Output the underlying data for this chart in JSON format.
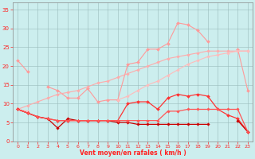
{
  "x": [
    0,
    1,
    2,
    3,
    4,
    5,
    6,
    7,
    8,
    9,
    10,
    11,
    12,
    13,
    14,
    15,
    16,
    17,
    18,
    19,
    20,
    21,
    22,
    23
  ],
  "series": [
    {
      "name": "max_gust_light",
      "color": "#ff9999",
      "linewidth": 0.8,
      "marker": "D",
      "markersize": 2.0,
      "values": [
        21.5,
        18.5,
        null,
        14.5,
        13.5,
        11.5,
        11.5,
        14.0,
        10.5,
        11.0,
        11.0,
        20.5,
        21.0,
        24.5,
        24.5,
        26.0,
        31.5,
        31.0,
        29.5,
        26.5,
        null,
        null,
        24.5,
        13.5
      ]
    },
    {
      "name": "mean_upper_light",
      "color": "#ffaaaa",
      "linewidth": 0.8,
      "marker": "D",
      "markersize": 1.8,
      "values": [
        8.5,
        9.5,
        10.5,
        11.5,
        12.5,
        13.0,
        13.5,
        14.5,
        15.5,
        16.0,
        17.0,
        18.0,
        19.0,
        20.0,
        21.0,
        22.0,
        22.5,
        23.0,
        23.5,
        24.0,
        24.0,
        24.0,
        24.0,
        24.0
      ]
    },
    {
      "name": "mean_mid_light",
      "color": "#ffbbbb",
      "linewidth": 0.8,
      "marker": "D",
      "markersize": 1.8,
      "values": [
        8.5,
        8.0,
        null,
        null,
        null,
        null,
        null,
        null,
        null,
        null,
        11.0,
        12.0,
        13.5,
        15.0,
        16.0,
        17.5,
        19.0,
        20.5,
        21.5,
        22.5,
        23.0,
        23.5,
        24.0,
        24.0
      ]
    },
    {
      "name": "series_dark1",
      "color": "#ff3333",
      "linewidth": 0.9,
      "marker": "D",
      "markersize": 2.0,
      "values": [
        8.5,
        7.5,
        6.5,
        6.0,
        5.5,
        5.5,
        5.5,
        5.5,
        5.5,
        5.5,
        5.5,
        10.0,
        10.5,
        10.5,
        8.5,
        11.5,
        12.5,
        12.0,
        12.5,
        12.0,
        8.5,
        7.0,
        6.0,
        2.5
      ]
    },
    {
      "name": "series_dark2",
      "color": "#cc0000",
      "linewidth": 0.9,
      "marker": "D",
      "markersize": 1.8,
      "values": [
        8.5,
        7.5,
        6.5,
        6.0,
        3.5,
        6.0,
        5.5,
        5.5,
        5.5,
        5.5,
        5.0,
        5.0,
        4.5,
        4.5,
        4.5,
        4.5,
        4.5,
        4.5,
        4.5,
        4.5,
        null,
        null,
        5.5,
        2.5
      ]
    },
    {
      "name": "series_dark3",
      "color": "#ff5555",
      "linewidth": 0.9,
      "marker": "D",
      "markersize": 1.8,
      "values": [
        8.5,
        7.5,
        6.5,
        6.0,
        5.5,
        5.5,
        5.5,
        5.5,
        5.5,
        5.5,
        5.5,
        5.5,
        5.5,
        5.5,
        5.5,
        8.0,
        8.0,
        8.5,
        8.5,
        8.5,
        8.5,
        8.5,
        8.5,
        2.5
      ]
    }
  ],
  "xlabel": "Vent moyen/en rafales ( km/h )",
  "xlim": [
    -0.5,
    23.5
  ],
  "ylim": [
    0,
    37
  ],
  "yticks": [
    0,
    5,
    10,
    15,
    20,
    25,
    30,
    35
  ],
  "xticks": [
    0,
    1,
    2,
    3,
    4,
    5,
    6,
    7,
    8,
    9,
    10,
    11,
    12,
    13,
    14,
    15,
    16,
    17,
    18,
    19,
    20,
    21,
    22,
    23
  ],
  "background_color": "#cceeee",
  "grid_color": "#99bbbb",
  "tick_color": "#ff2222",
  "label_color": "#ff2222",
  "arrow_color": "#ff2222",
  "spine_color": "#888888"
}
